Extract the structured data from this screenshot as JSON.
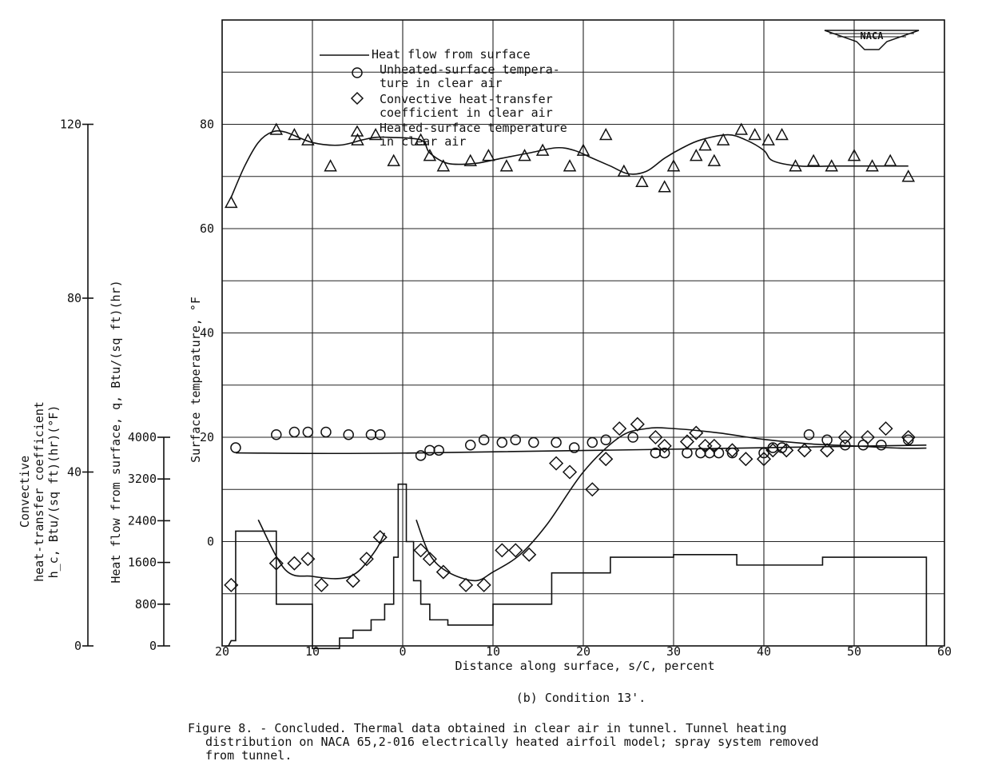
{
  "chart_data": {
    "type": "scatter",
    "subtitle": "(b) Condition 13'.",
    "caption_lines": [
      "Figure 8. - Concluded.  Thermal data obtained in clear air in tunnel.  Tunnel heating",
      "distribution on NACA 65,2-016 electrically heated airfoil model; spray system removed",
      "from tunnel."
    ],
    "logo_text": "NACA",
    "xlabel": "Distance along surface, s/C, percent",
    "xlim": [
      -20,
      60
    ],
    "x_tick_values": [
      -20,
      -10,
      0,
      10,
      20,
      30,
      40,
      50,
      60
    ],
    "x_tick_labels": [
      "20",
      "10",
      "0",
      "10",
      "20",
      "30",
      "40",
      "50",
      "60"
    ],
    "ylabel": "Surface temperature, °F",
    "ylim": [
      -20,
      100
    ],
    "y_tick_values": [
      0,
      20,
      40,
      60,
      80
    ],
    "y_tick_labels": [
      "0",
      "20",
      "40",
      "60",
      "80"
    ],
    "q_axis": {
      "label": "Heat flow from surface, q, Btu/(sq ft)(hr)",
      "ticks": [
        0,
        800,
        1600,
        2400,
        3200,
        4000
      ],
      "tick_labels": [
        "0",
        "800",
        "1600",
        "2400",
        "3200",
        "4000"
      ]
    },
    "hc_axis": {
      "label_lines": [
        "Convective",
        "heat-transfer coefficient",
        "h_c, Btu/(sq ft)(hr)(°F)"
      ],
      "ticks": [
        0,
        40,
        80,
        120
      ],
      "tick_labels": [
        "0",
        "40",
        "80",
        "120"
      ]
    },
    "legend": [
      {
        "symbol": "line",
        "label_lines": [
          "Heat flow from surface"
        ]
      },
      {
        "symbol": "circle",
        "label_lines": [
          "Unheated-surface tempera-",
          "ture in clear air"
        ]
      },
      {
        "symbol": "diamond",
        "label_lines": [
          "Convective heat-transfer",
          "coefficient in clear air"
        ]
      },
      {
        "symbol": "triangle",
        "label_lines": [
          "Heated-surface temperature",
          "in clear air"
        ]
      }
    ],
    "series": [
      {
        "name": "Heat flow from surface",
        "axis": "q",
        "kind": "step",
        "x": [
          -19.5,
          -19.3,
          -19,
          -18.5,
          -18.5,
          -14,
          -14,
          -10,
          -10,
          -7,
          -7,
          -5.5,
          -5.5,
          -3.5,
          -3.5,
          -2,
          -2,
          -1,
          -1,
          -0.5,
          -0.5,
          0.4,
          0.4,
          1.2,
          1.2,
          2,
          2,
          3,
          3,
          5,
          5,
          10,
          10,
          16.5,
          16.5,
          23,
          23,
          30,
          30,
          37,
          37,
          46.5,
          46.5,
          58,
          58
        ],
        "y": [
          0,
          0,
          100,
          100,
          2200,
          2200,
          800,
          800,
          -50,
          -50,
          150,
          150,
          300,
          300,
          500,
          500,
          800,
          800,
          1700,
          1700,
          3100,
          3100,
          2000,
          2000,
          1250,
          1250,
          800,
          800,
          500,
          500,
          400,
          400,
          800,
          800,
          1400,
          1400,
          1700,
          1700,
          1750,
          1750,
          1550,
          1550,
          1700,
          1700,
          0
        ]
      },
      {
        "name": "Heated-surface temperature in clear air",
        "axis": "T",
        "kind": "markers",
        "marker": "triangle",
        "x": [
          -19,
          -14,
          -12,
          -10.5,
          -8,
          -5,
          -3,
          -1,
          2,
          3,
          4.5,
          7.5,
          9.5,
          11.5,
          13.5,
          15.5,
          18.5,
          20,
          22.5,
          24.5,
          26.5,
          29,
          30,
          32.5,
          33.5,
          34.5,
          35.5,
          37.5,
          39,
          40.5,
          42,
          43.5,
          45.5,
          47.5,
          50,
          52,
          54,
          56
        ],
        "y": [
          65,
          79,
          78,
          77,
          72,
          77,
          78,
          73,
          77,
          74,
          72,
          73,
          74,
          72,
          74,
          75,
          72,
          75,
          78,
          71,
          69,
          68,
          72,
          74,
          76,
          73,
          77,
          79,
          78,
          77,
          78,
          72,
          73,
          72,
          74,
          72,
          73,
          70
        ]
      },
      {
        "name": "Heated-surface temperature fairing",
        "axis": "T",
        "kind": "curve",
        "x": [
          -19,
          -17.5,
          -16,
          -14.5,
          -13,
          -10,
          -7,
          -4.5,
          -3,
          -1.5,
          2,
          3,
          5,
          8,
          11,
          14,
          17,
          19,
          21,
          23,
          25,
          27,
          29,
          31,
          33,
          36,
          38,
          40,
          41,
          44,
          48,
          52,
          56
        ],
        "y": [
          66,
          72,
          76.5,
          78.5,
          78.5,
          76.5,
          76,
          77,
          77.5,
          77.5,
          77,
          74.5,
          72.5,
          72.5,
          73.5,
          74.5,
          75.5,
          75,
          73.5,
          72,
          70.5,
          71,
          73.5,
          75.5,
          77,
          78,
          77,
          75,
          73,
          72,
          72,
          72,
          72
        ]
      },
      {
        "name": "Unheated-surface temperature in clear air",
        "axis": "T",
        "kind": "markers",
        "marker": "circle",
        "x": [
          -18.5,
          -14,
          -12,
          -10.5,
          -8.5,
          -6,
          -3.5,
          -2.5,
          2,
          3,
          4,
          7.5,
          9,
          11,
          12.5,
          14.5,
          17,
          19,
          21,
          22.5,
          25.5,
          28,
          29,
          31.5,
          33,
          34,
          35,
          36.5,
          40,
          41,
          42,
          45,
          47,
          49,
          51,
          53,
          56
        ],
        "y": [
          18,
          20.5,
          21,
          21,
          21,
          20.5,
          20.5,
          20.5,
          16.5,
          17.5,
          17.5,
          18.5,
          19.5,
          19,
          19.5,
          19,
          19,
          18,
          19,
          19.5,
          20,
          17,
          17,
          17,
          17,
          17,
          17,
          17,
          17,
          18,
          18,
          20.5,
          19.5,
          18.5,
          18.5,
          18.5,
          19.5
        ]
      },
      {
        "name": "Unheated-surface temperature fairing",
        "axis": "T",
        "kind": "curve",
        "x": [
          -18.5,
          2,
          58
        ],
        "y": [
          17,
          17,
          18.5
        ]
      },
      {
        "name": "Convective heat-transfer coefficient in clear air",
        "axis": "hc",
        "kind": "markers",
        "marker": "diamond",
        "x": [
          -19,
          -14,
          -12,
          -10.5,
          -9,
          -5.5,
          -4,
          -2.5,
          2,
          3,
          4.5,
          7,
          9,
          11,
          12.5,
          14,
          17,
          18.5,
          21,
          22.5,
          24,
          26,
          28,
          29,
          31.5,
          32.5,
          33.5,
          34.5,
          36.5,
          38,
          40,
          41,
          42.5,
          44.5,
          47,
          49,
          51.5,
          53.5,
          56
        ],
        "y": [
          14,
          19,
          19,
          20,
          14,
          15,
          20,
          25,
          22,
          20,
          17,
          14,
          14,
          22,
          22,
          21,
          42,
          40,
          36,
          43,
          50,
          51,
          48,
          46,
          47,
          49,
          46,
          46,
          45,
          43,
          43,
          45,
          45,
          45,
          45,
          48,
          48,
          50,
          48
        ]
      },
      {
        "name": "Convective heat-transfer coefficient fairing",
        "axis": "hc",
        "kind": "curve",
        "x": [
          -16,
          -13,
          -10,
          -7,
          -5,
          -3,
          -2
        ],
        "y": [
          29,
          17.5,
          16,
          15.5,
          17,
          22,
          26
        ]
      },
      {
        "name": "Convective heat-transfer coefficient fairing (upper surface)",
        "axis": "hc",
        "kind": "curve",
        "x": [
          1.5,
          3,
          5,
          8,
          10,
          13,
          16,
          20,
          24,
          27,
          30,
          35,
          40,
          45,
          50,
          55,
          58
        ],
        "y": [
          29,
          21,
          17,
          15,
          17,
          21,
          28,
          40,
          48,
          50,
          50,
          49,
          47.5,
          46.5,
          46,
          45.5,
          45.5
        ]
      }
    ]
  }
}
